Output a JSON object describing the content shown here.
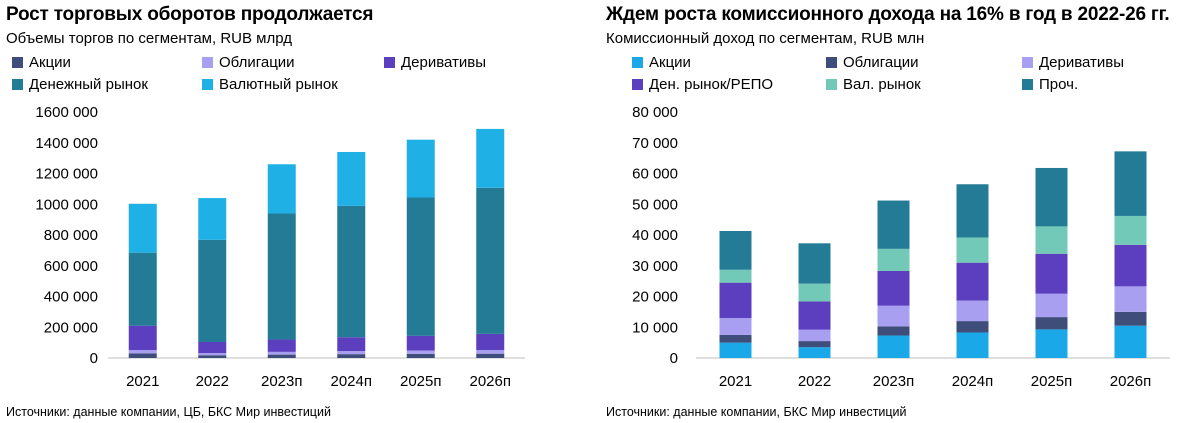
{
  "charts": [
    {
      "title": "Рост торговых оборотов продолжается",
      "subtitle": "Объемы торгов по сегментам, RUB млрд",
      "source": "Источники: данные компании, ЦБ, БКС Мир инвестиций",
      "legend": [
        {
          "label": "Акции",
          "color": "#3f4d7a"
        },
        {
          "label": "Облигации",
          "color": "#a99ff0"
        },
        {
          "label": "Деривативы",
          "color": "#5b3fbf"
        },
        {
          "label": "Денежный рынок",
          "color": "#237b95"
        },
        {
          "label": "Валютный рынок",
          "color": "#1fb0e6"
        }
      ]
    },
    {
      "title": "Ждем роста комиссионного дохода на 16% в год в 2022-26 гг.",
      "subtitle": "Комиссионный доход по сегментам, RUB млн",
      "source": "Источники: данные компании, БКС Мир инвестиций",
      "legend": [
        {
          "label": "Акции",
          "color": "#1aa8e8"
        },
        {
          "label": "Облигации",
          "color": "#3f4d7a"
        },
        {
          "label": "Деривативы",
          "color": "#a99ff0"
        },
        {
          "label": "Ден. рынок/РЕПО",
          "color": "#5b3fbf"
        },
        {
          "label": "Вал. рынок",
          "color": "#72c9b7"
        },
        {
          "label": "Проч.",
          "color": "#237b95"
        }
      ]
    }
  ],
  "chart_data": [
    {
      "type": "bar",
      "stacked": true,
      "title": "Рост торговых оборотов продолжается",
      "subtitle": "Объемы торгов по сегментам, RUB млрд",
      "categories": [
        "2021",
        "2022",
        "2023п",
        "2024п",
        "2025п",
        "2026п"
      ],
      "ylim": [
        0,
        1600000
      ],
      "yticks": [
        0,
        200000,
        400000,
        600000,
        800000,
        1000000,
        1200000,
        1400000,
        1600000
      ],
      "ytick_labels": [
        "0",
        "200 000",
        "400 000",
        "600 000",
        "800 000",
        "1000 000",
        "1200 000",
        "1400 000",
        "1600 000"
      ],
      "series": [
        {
          "name": "Акции",
          "color": "#3f4d7a",
          "values": [
            30000,
            18000,
            22000,
            25000,
            27000,
            28000
          ]
        },
        {
          "name": "Облигации",
          "color": "#a99ff0",
          "values": [
            22000,
            14000,
            18000,
            20000,
            22000,
            24000
          ]
        },
        {
          "name": "Деривативы",
          "color": "#5b3fbf",
          "values": [
            158000,
            72000,
            80000,
            90000,
            95000,
            105000
          ]
        },
        {
          "name": "Денежный рынок",
          "color": "#237b95",
          "values": [
            475000,
            665000,
            820000,
            855000,
            900000,
            950000
          ]
        },
        {
          "name": "Валютный рынок",
          "color": "#1fb0e6",
          "values": [
            318000,
            271000,
            320000,
            350000,
            376000,
            383000
          ]
        }
      ]
    },
    {
      "type": "bar",
      "stacked": true,
      "title": "Ждем роста комиссионного дохода на 16% в год в 2022-26 гг.",
      "subtitle": "Комиссионный доход по сегментам, RUB млн",
      "categories": [
        "2021",
        "2022",
        "2023п",
        "2024п",
        "2025п",
        "2026п"
      ],
      "ylim": [
        0,
        80000
      ],
      "yticks": [
        0,
        10000,
        20000,
        30000,
        40000,
        50000,
        60000,
        70000,
        80000
      ],
      "ytick_labels": [
        "0",
        "10 000",
        "20 000",
        "30 000",
        "40 000",
        "50 000",
        "60 000",
        "70 000",
        "80 000"
      ],
      "series": [
        {
          "name": "Акции",
          "color": "#1aa8e8",
          "values": [
            5000,
            3500,
            7300,
            8300,
            9300,
            10500
          ]
        },
        {
          "name": "Облигации",
          "color": "#3f4d7a",
          "values": [
            2500,
            2000,
            3000,
            3700,
            4000,
            4500
          ]
        },
        {
          "name": "Деривативы",
          "color": "#a99ff0",
          "values": [
            5500,
            3700,
            6700,
            6700,
            7600,
            8300
          ]
        },
        {
          "name": "Ден. рынок/РЕПО",
          "color": "#5b3fbf",
          "values": [
            11500,
            9200,
            11300,
            12300,
            13000,
            13500
          ]
        },
        {
          "name": "Вал. рынок",
          "color": "#72c9b7",
          "values": [
            4200,
            5800,
            7200,
            8200,
            8900,
            9400
          ]
        },
        {
          "name": "Проч.",
          "color": "#237b95",
          "values": [
            12600,
            13100,
            15700,
            17300,
            19000,
            21000
          ]
        }
      ]
    }
  ]
}
